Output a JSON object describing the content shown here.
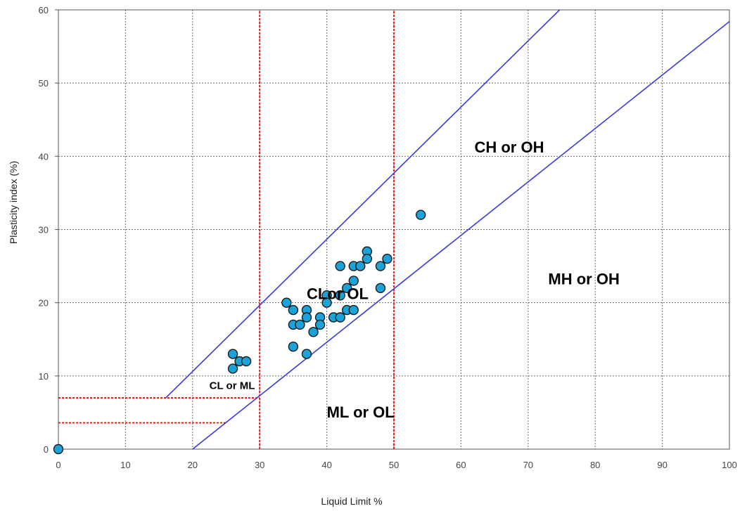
{
  "chart_data": {
    "type": "scatter",
    "title": "",
    "xlabel": "Liquid Limit %",
    "ylabel": "Plasticity index (%)",
    "xlim": [
      0,
      100
    ],
    "ylim": [
      0,
      60
    ],
    "x_ticks": [
      "0",
      "10",
      "20",
      "30",
      "40",
      "50",
      "60",
      "70",
      "80",
      "90",
      "100"
    ],
    "y_ticks": [
      "0",
      "10",
      "20",
      "30",
      "40",
      "50",
      "60"
    ],
    "grid": true,
    "colors": {
      "points": "#1aa3d9",
      "point_edge": "#1a1a1a",
      "lines": "#3a3ad8",
      "boundaries": "#ff0000",
      "grid": "#6e6e6e"
    },
    "points": [
      {
        "x": 0,
        "y": 0
      },
      {
        "x": 26,
        "y": 13
      },
      {
        "x": 26,
        "y": 11
      },
      {
        "x": 27,
        "y": 12
      },
      {
        "x": 28,
        "y": 12
      },
      {
        "x": 34,
        "y": 20
      },
      {
        "x": 35,
        "y": 19
      },
      {
        "x": 35,
        "y": 17
      },
      {
        "x": 35,
        "y": 14
      },
      {
        "x": 36,
        "y": 17
      },
      {
        "x": 37,
        "y": 19
      },
      {
        "x": 37,
        "y": 18
      },
      {
        "x": 37,
        "y": 13
      },
      {
        "x": 38,
        "y": 16
      },
      {
        "x": 39,
        "y": 18
      },
      {
        "x": 39,
        "y": 17
      },
      {
        "x": 40,
        "y": 21
      },
      {
        "x": 40,
        "y": 20
      },
      {
        "x": 41,
        "y": 18
      },
      {
        "x": 42,
        "y": 25
      },
      {
        "x": 42,
        "y": 21
      },
      {
        "x": 42,
        "y": 18
      },
      {
        "x": 43,
        "y": 22
      },
      {
        "x": 43,
        "y": 19
      },
      {
        "x": 44,
        "y": 25
      },
      {
        "x": 44,
        "y": 23
      },
      {
        "x": 44,
        "y": 19
      },
      {
        "x": 45,
        "y": 25
      },
      {
        "x": 46,
        "y": 27
      },
      {
        "x": 46,
        "y": 26
      },
      {
        "x": 48,
        "y": 25
      },
      {
        "x": 48,
        "y": 22
      },
      {
        "x": 49,
        "y": 26
      },
      {
        "x": 54,
        "y": 32
      }
    ],
    "lines": [
      {
        "id": "a-line",
        "x1": 20,
        "y1": 0,
        "x2": 100,
        "y2": 58.4
      },
      {
        "id": "u-line",
        "x1": 16,
        "y1": 7,
        "x2": 74.7,
        "y2": 60
      }
    ],
    "boundaries": [
      {
        "id": "ll-30",
        "x1": 30,
        "y1": 0,
        "x2": 30,
        "y2": 60
      },
      {
        "id": "ll-50",
        "x1": 50,
        "y1": 0,
        "x2": 50,
        "y2": 60
      },
      {
        "id": "pi-7",
        "x1": 0,
        "y1": 7,
        "x2": 30,
        "y2": 7
      },
      {
        "id": "pi-4",
        "x1": 0,
        "y1": 3.6,
        "x2": 25,
        "y2": 3.6
      }
    ],
    "regions": [
      {
        "label": "CH or OH",
        "x": 62,
        "y": 40.5,
        "size": 22
      },
      {
        "label": "MH or OH",
        "x": 73,
        "y": 22.5,
        "size": 22
      },
      {
        "label": "CLor OL",
        "x": 37,
        "y": 20.5,
        "size": 22
      },
      {
        "label": "CL or ML",
        "x": 22.5,
        "y": 8.2,
        "size": 15
      },
      {
        "label": "ML or OL",
        "x": 40,
        "y": 4.3,
        "size": 22
      }
    ]
  }
}
